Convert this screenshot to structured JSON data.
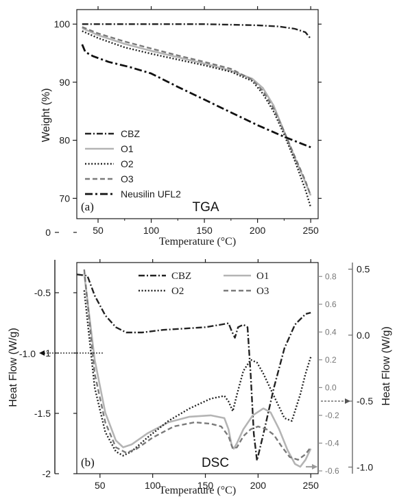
{
  "chart_data": [
    {
      "type": "line",
      "panel_label": "(a)",
      "title": "TGA",
      "xlabel": "Temperature (°C)",
      "ylabel": "Weight (%)",
      "xlim": [
        30,
        257
      ],
      "ylim": [
        66.5,
        102.5
      ],
      "xticks": [
        50,
        100,
        150,
        200,
        250
      ],
      "yticks": [
        70,
        80,
        90,
        100
      ],
      "legend_position": "bottom-left",
      "series": [
        {
          "name": "CBZ",
          "color": "#222222",
          "dash": "dashdot",
          "x": [
            35,
            60,
            100,
            150,
            200,
            220,
            235,
            245,
            250
          ],
          "y": [
            100,
            100,
            100,
            100,
            99.8,
            99.6,
            99.2,
            98.6,
            97.5
          ]
        },
        {
          "name": "O1",
          "color": "#b4b4b4",
          "dash": "solid",
          "x": [
            35,
            50,
            75,
            100,
            125,
            150,
            175,
            195,
            205,
            215,
            225,
            235,
            245,
            250
          ],
          "y": [
            99.3,
            98.1,
            96.6,
            95.4,
            94.3,
            93.2,
            92.0,
            90.6,
            89.0,
            86.0,
            81.5,
            77.0,
            72.8,
            70.5
          ]
        },
        {
          "name": "O2",
          "color": "#222222",
          "dash": "dotted",
          "x": [
            35,
            50,
            75,
            100,
            125,
            150,
            175,
            195,
            205,
            215,
            225,
            235,
            245,
            250
          ],
          "y": [
            98.8,
            97.6,
            96.0,
            94.9,
            93.9,
            92.9,
            91.8,
            90.2,
            88.0,
            85.0,
            81.0,
            76.5,
            71.5,
            68.5
          ]
        },
        {
          "name": "O3",
          "color": "#7a7a7a",
          "dash": "dashed",
          "x": [
            35,
            50,
            75,
            100,
            125,
            150,
            175,
            195,
            205,
            215,
            225,
            235,
            245,
            250
          ],
          "y": [
            99.5,
            98.4,
            97.0,
            95.8,
            94.6,
            93.5,
            92.3,
            90.4,
            88.5,
            85.5,
            81.5,
            77.2,
            73.0,
            70.5
          ]
        },
        {
          "name": "Neusilin UFL2",
          "color": "#111111",
          "dash": "dashdot-bold",
          "x": [
            35,
            38,
            45,
            60,
            80,
            100,
            125,
            150,
            175,
            200,
            225,
            250
          ],
          "y": [
            96.5,
            95.2,
            94.5,
            93.5,
            92.6,
            91.5,
            89.2,
            87.0,
            84.8,
            82.6,
            80.6,
            78.8
          ]
        }
      ]
    },
    {
      "type": "line",
      "panel_label": "(b)",
      "title": "DSC",
      "xlabel": "Temperature (°C)",
      "ylabel": "Heat Flow (W/g)",
      "ylabel_right": "Heat Flow (W/g)",
      "xlim": [
        28,
        257
      ],
      "ylim_left": [
        -2,
        -0.25
      ],
      "yticks_left": [
        -2,
        -1.5,
        -1,
        -0.5,
        0
      ],
      "ytick_labels_left": [
        "-2",
        "-1.5",
        "-1",
        "-0.5",
        "0"
      ],
      "ylim_inner": [
        -0.62,
        0.9
      ],
      "yticks_inner": [
        -0.6,
        -0.4,
        -0.2,
        0.0,
        0.2,
        0.4,
        0.6,
        0.8
      ],
      "ytick_labels_inner": [
        "-0.6",
        "-0.4",
        "-0.2",
        "0.0",
        "0.2",
        "0.4",
        "0.6",
        "0.8"
      ],
      "ylim_right": [
        -1.05,
        0.55
      ],
      "yticks_right": [
        -1.0,
        -0.5,
        0.0,
        0.5
      ],
      "ytick_labels_right": [
        "-1.0",
        "-0.5",
        "0.0",
        "0.5"
      ],
      "extra_left_tick_label": "-1.0",
      "xticks": [
        50,
        100,
        150,
        200,
        250
      ],
      "legend_position": "top-center",
      "series": [
        {
          "name": "CBZ",
          "color": "#222222",
          "dash": "dashdot",
          "axis": "right",
          "x": [
            28,
            38,
            45,
            55,
            65,
            75,
            90,
            110,
            130,
            150,
            165,
            172,
            175,
            178,
            181,
            186,
            190,
            193,
            196,
            199,
            205,
            215,
            225,
            235,
            245,
            250
          ],
          "y": [
            0.46,
            0.45,
            0.3,
            0.15,
            0.06,
            0.02,
            0.02,
            0.04,
            0.05,
            0.06,
            0.08,
            0.09,
            0.03,
            -0.02,
            0.06,
            0.08,
            0.06,
            -0.3,
            -0.75,
            -0.95,
            -0.75,
            -0.4,
            -0.1,
            0.08,
            0.16,
            0.17
          ]
        },
        {
          "name": "O1",
          "color": "#b4b4b4",
          "dash": "solid",
          "axis": "inner",
          "x": [
            35,
            45,
            55,
            65,
            72,
            80,
            95,
            115,
            135,
            155,
            168,
            172,
            175,
            177,
            180,
            186,
            195,
            205,
            212,
            220,
            228,
            235,
            240,
            245,
            250
          ],
          "y": [
            0.82,
            0.2,
            -0.18,
            -0.38,
            -0.43,
            -0.41,
            -0.33,
            -0.25,
            -0.21,
            -0.2,
            -0.22,
            -0.3,
            -0.42,
            -0.44,
            -0.4,
            -0.3,
            -0.2,
            -0.15,
            -0.18,
            -0.3,
            -0.45,
            -0.55,
            -0.57,
            -0.52,
            -0.44
          ]
        },
        {
          "name": "O2",
          "color": "#222222",
          "dash": "dotted",
          "axis": "inner",
          "x": [
            35,
            45,
            55,
            65,
            72,
            80,
            95,
            115,
            135,
            155,
            168,
            172,
            176,
            180,
            186,
            193,
            199,
            205,
            215,
            225,
            232,
            240,
            245,
            250
          ],
          "y": [
            0.7,
            0.0,
            -0.32,
            -0.46,
            -0.49,
            -0.46,
            -0.36,
            -0.24,
            -0.15,
            -0.08,
            -0.06,
            -0.1,
            -0.17,
            -0.05,
            0.12,
            0.2,
            0.18,
            0.1,
            -0.06,
            -0.22,
            -0.24,
            -0.05,
            0.1,
            0.22
          ]
        },
        {
          "name": "O3",
          "color": "#7a7a7a",
          "dash": "dashed",
          "axis": "inner",
          "x": [
            35,
            45,
            55,
            65,
            75,
            85,
            100,
            120,
            140,
            155,
            165,
            172,
            176,
            180,
            186,
            193,
            200,
            208,
            215,
            222,
            230,
            238,
            245,
            250
          ],
          "y": [
            0.85,
            0.1,
            -0.25,
            -0.43,
            -0.47,
            -0.44,
            -0.36,
            -0.28,
            -0.25,
            -0.26,
            -0.28,
            -0.35,
            -0.44,
            -0.43,
            -0.35,
            -0.3,
            -0.28,
            -0.3,
            -0.34,
            -0.42,
            -0.5,
            -0.52,
            -0.48,
            -0.43
          ]
        }
      ]
    }
  ]
}
